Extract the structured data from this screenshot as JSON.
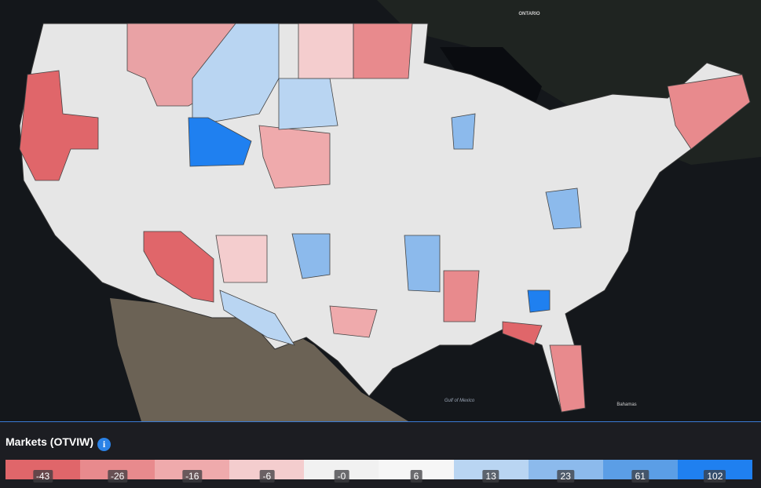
{
  "map": {
    "labels": [
      "ONTARIO",
      "Gulf of Mexico",
      "Bahamas"
    ]
  },
  "legend": {
    "title": "Markets (OTVIW)",
    "icon": "i",
    "items": [
      {
        "label": "-43",
        "color": "#e0666a"
      },
      {
        "label": "-26",
        "color": "#e88a8d"
      },
      {
        "label": "-16",
        "color": "#efaaac"
      },
      {
        "label": "-6",
        "color": "#f4cdce"
      },
      {
        "label": "-0",
        "color": "#f1f1f1"
      },
      {
        "label": "6",
        "color": "#f6f6f6"
      },
      {
        "label": "13",
        "color": "#b9d5f2"
      },
      {
        "label": "23",
        "color": "#8cbaec"
      },
      {
        "label": "61",
        "color": "#5b9ee6"
      },
      {
        "label": "102",
        "color": "#1f80f0"
      }
    ]
  }
}
